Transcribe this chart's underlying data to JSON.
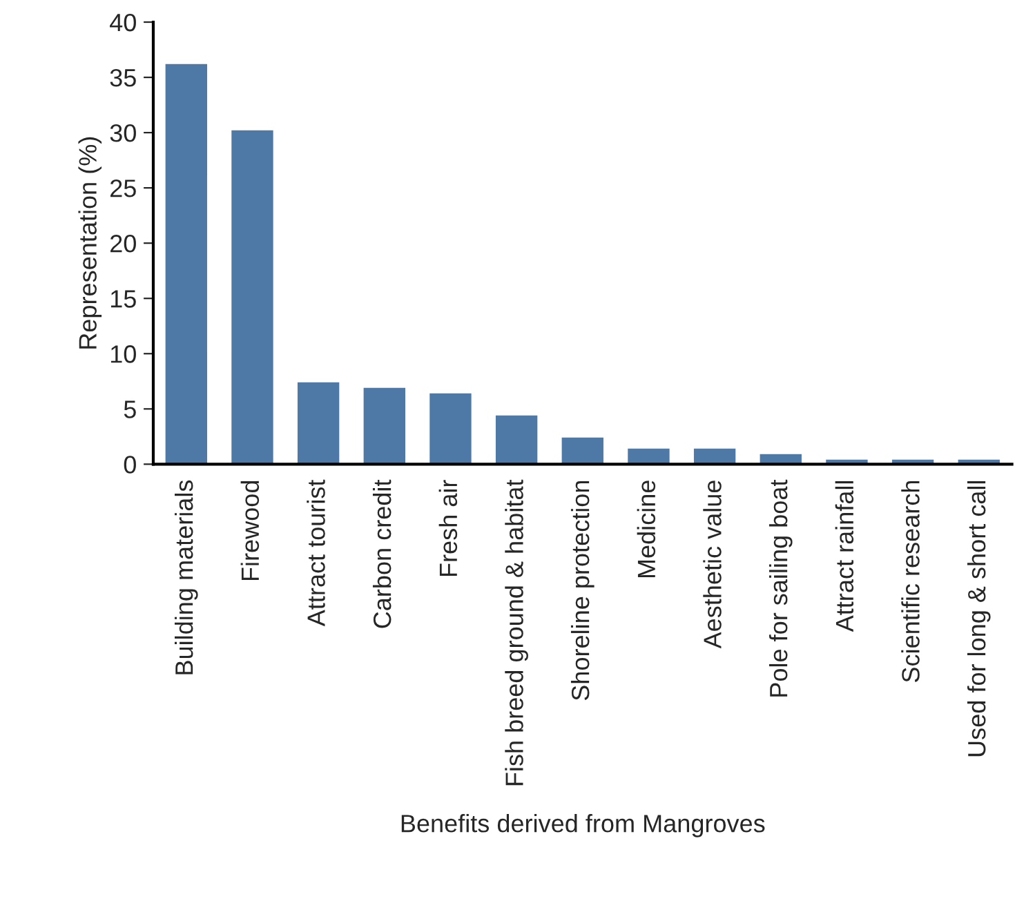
{
  "chart_data": {
    "type": "bar",
    "xlabel": "Benefits derived from Mangroves",
    "ylabel": "Representation (%)",
    "categories": [
      "Building materials",
      "Firewood",
      "Attract tourist",
      "Carbon credit",
      "Fresh air",
      "Fish breed ground & habitat",
      "Shoreline protection",
      "Medicine",
      "Aesthetic value",
      "Pole for sailing boat",
      "Attract rainfall",
      "Scientific research",
      "Used for long & short call"
    ],
    "values": [
      36.3,
      30.3,
      7.5,
      7.0,
      6.5,
      4.5,
      2.5,
      1.5,
      1.5,
      1.0,
      0.5,
      0.5,
      0.5
    ],
    "color": "#4e79a7",
    "ylim": [
      0,
      40
    ],
    "yticks": [
      0,
      5,
      10,
      15,
      20,
      25,
      30,
      35,
      40
    ],
    "grid": false
  }
}
